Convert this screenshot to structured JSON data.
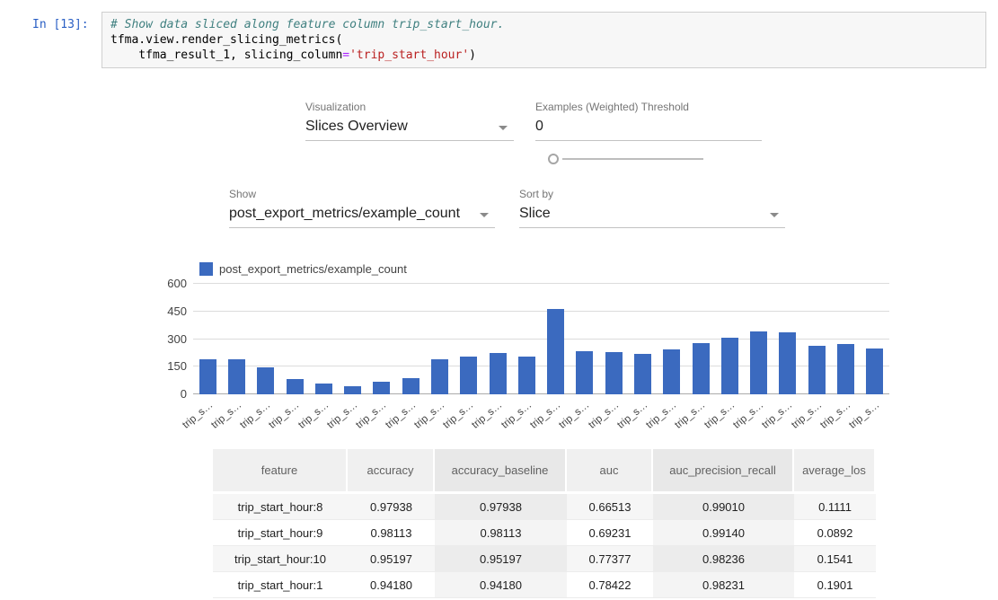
{
  "notebook": {
    "prompt": "In [13]:",
    "code_lines": {
      "comment": "# Show data sliced along feature column trip_start_hour.",
      "call_line": "tfma.view.render_slicing_metrics(",
      "args_pre": "    tfma_result_1, slicing_column",
      "args_eq": "=",
      "args_string": "'trip_start_hour'",
      "args_close": ")"
    }
  },
  "controls": {
    "visualization": {
      "label": "Visualization",
      "value": "Slices Overview"
    },
    "threshold": {
      "label": "Examples (Weighted) Threshold",
      "value": "0"
    },
    "show": {
      "label": "Show",
      "value": "post_export_metrics/example_count"
    },
    "sort": {
      "label": "Sort by",
      "value": "Slice"
    }
  },
  "chart_data": {
    "type": "bar",
    "title": "",
    "legend": "post_export_metrics/example_count",
    "bar_color": "#3b6abf",
    "ylim": [
      0,
      600
    ],
    "yticks": [
      0,
      150,
      300,
      450,
      600
    ],
    "categories": [
      "trip_s…",
      "trip_s…",
      "trip_s…",
      "trip_s…",
      "trip_s…",
      "trip_s…",
      "trip_s…",
      "trip_s…",
      "trip_s…",
      "trip_s…",
      "trip_s…",
      "trip_s…",
      "trip_s…",
      "trip_s…",
      "trip_s…",
      "trip_s…",
      "trip_s…",
      "trip_s…",
      "trip_s…",
      "trip_s…",
      "trip_s…",
      "trip_s…",
      "trip_s…",
      "trip_s…"
    ],
    "values": [
      190,
      190,
      148,
      85,
      58,
      45,
      68,
      90,
      190,
      205,
      225,
      205,
      462,
      235,
      230,
      220,
      245,
      280,
      305,
      340,
      338,
      265,
      275,
      250
    ]
  },
  "table": {
    "headers": [
      "feature",
      "accuracy",
      "accuracy_baseline",
      "auc",
      "auc_precision_recall",
      "average_los"
    ],
    "rows": [
      [
        "trip_start_hour:8",
        "0.97938",
        "0.97938",
        "0.66513",
        "0.99010",
        "0.1111"
      ],
      [
        "trip_start_hour:9",
        "0.98113",
        "0.98113",
        "0.69231",
        "0.99140",
        "0.0892"
      ],
      [
        "trip_start_hour:10",
        "0.95197",
        "0.95197",
        "0.77377",
        "0.98236",
        "0.1541"
      ],
      [
        "trip_start_hour:1",
        "0.94180",
        "0.94180",
        "0.78422",
        "0.98231",
        "0.1901"
      ]
    ]
  }
}
